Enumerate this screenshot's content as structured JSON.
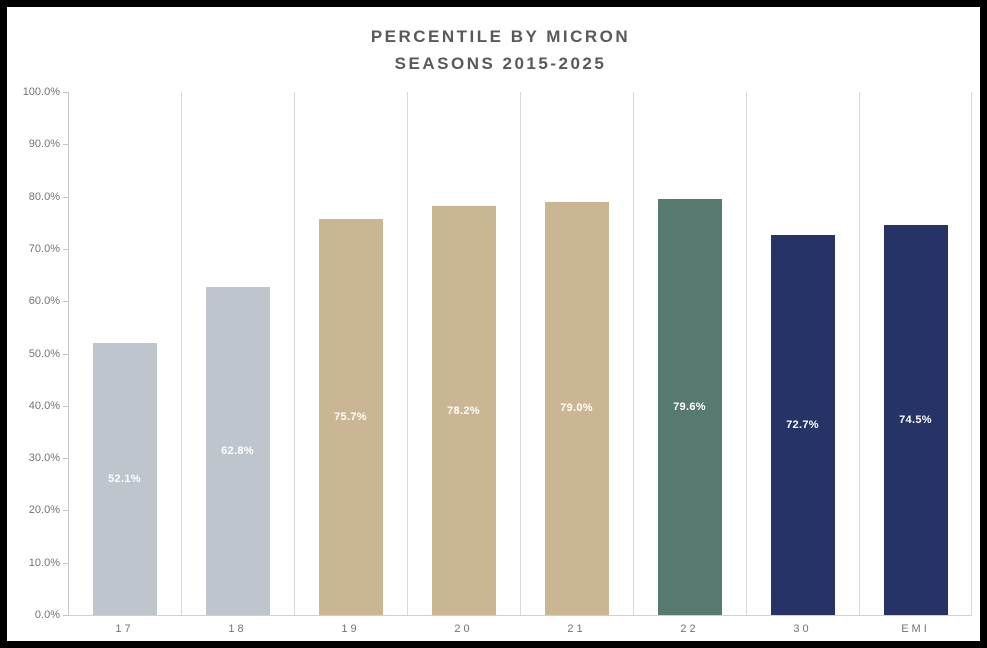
{
  "title": {
    "line1": "PERCENTILE BY MICRON",
    "line2": "SEASONS 2015-2025"
  },
  "chart_data": {
    "type": "bar",
    "title": "PERCENTILE BY MICRON SEASONS 2015-2025",
    "categories": [
      "17",
      "18",
      "19",
      "20",
      "21",
      "22",
      "30",
      "EMI"
    ],
    "values": [
      52.1,
      62.8,
      75.7,
      78.2,
      79.0,
      79.6,
      72.7,
      74.5
    ],
    "value_labels": [
      "52.1%",
      "62.8%",
      "75.7%",
      "78.2%",
      "79.0%",
      "79.6%",
      "72.7%",
      "74.5%"
    ],
    "bar_colors": [
      "#bec5cd",
      "#bec5cd",
      "#cbb694",
      "#cbb694",
      "#cbb694",
      "#567a70",
      "#263366",
      "#263366"
    ],
    "xlabel": "",
    "ylabel": "",
    "ylim": [
      0,
      100
    ],
    "ytick_step": 10,
    "ytick_labels": [
      "0.0%",
      "10.0%",
      "20.0%",
      "30.0%",
      "40.0%",
      "50.0%",
      "60.0%",
      "70.0%",
      "80.0%",
      "90.0%",
      "100.0%"
    ],
    "grid": "vertical-category-boundaries-only",
    "legend": "none",
    "data_label_position": "inside-center",
    "data_label_color": "#ffffff"
  },
  "colors": {
    "frame": "#000000",
    "background": "#ffffff",
    "title_text": "#595959",
    "axis_text": "#737373",
    "gridline": "#d9d9d9",
    "axis_line": "#c6c6c6"
  }
}
